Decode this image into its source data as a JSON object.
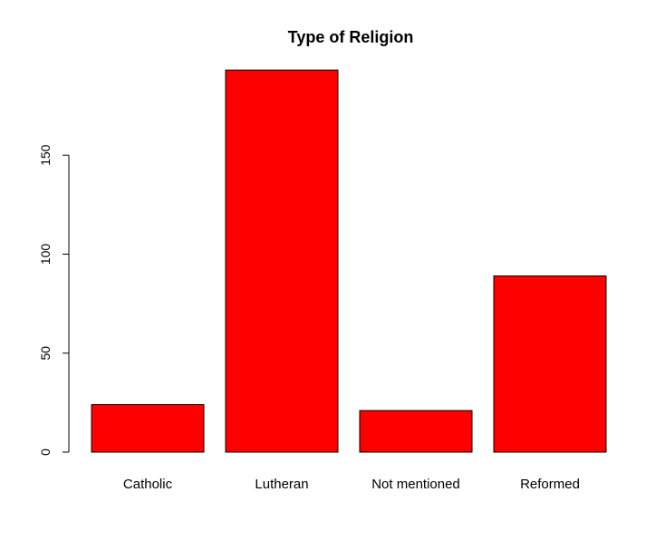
{
  "chart_data": {
    "type": "bar",
    "title": "Type of Religion",
    "xlabel": "",
    "ylabel": "",
    "categories": [
      "Catholic",
      "Lutheran",
      "Not mentioned",
      "Reformed"
    ],
    "values": [
      24,
      193,
      21,
      89
    ],
    "ylim": [
      0,
      200
    ],
    "yticks": [
      0,
      50,
      100,
      150
    ],
    "ytick_labels": [
      "0",
      "50",
      "100",
      "150"
    ],
    "bar_color": "#ff0000",
    "bar_border_color": "#000000",
    "grid": false,
    "legend": "none"
  }
}
